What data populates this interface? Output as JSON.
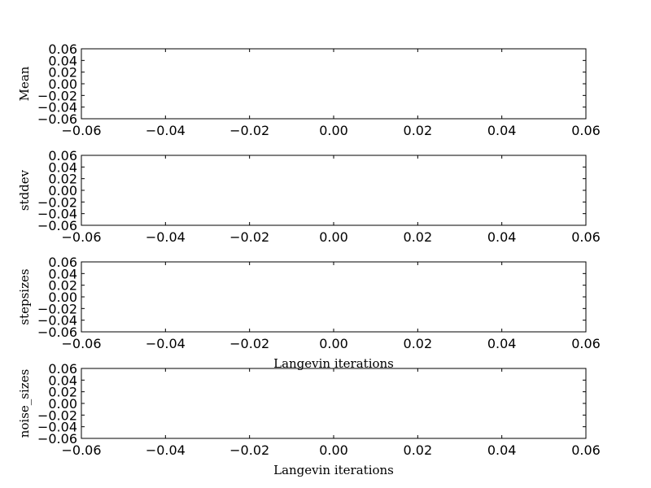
{
  "chart_data": [
    {
      "type": "line",
      "ylabel": "Mean",
      "xlabel": "",
      "xlim": [
        -0.06,
        0.06
      ],
      "ylim": [
        -0.06,
        0.06
      ],
      "xticks": [
        "−0.06",
        "−0.04",
        "−0.02",
        "0.00",
        "0.02",
        "0.04",
        "0.06"
      ],
      "yticks": [
        "0.06",
        "0.04",
        "0.02",
        "0.00",
        "−0.02",
        "−0.04",
        "−0.06"
      ],
      "series": [],
      "grid": false
    },
    {
      "type": "line",
      "ylabel": "stddev",
      "xlabel": "",
      "xlim": [
        -0.06,
        0.06
      ],
      "ylim": [
        -0.06,
        0.06
      ],
      "xticks": [
        "−0.06",
        "−0.04",
        "−0.02",
        "0.00",
        "0.02",
        "0.04",
        "0.06"
      ],
      "yticks": [
        "0.06",
        "0.04",
        "0.02",
        "0.00",
        "−0.02",
        "−0.04",
        "−0.06"
      ],
      "series": [],
      "grid": false
    },
    {
      "type": "line",
      "ylabel": "stepsizes",
      "xlabel": "Langevin iterations",
      "xlim": [
        -0.06,
        0.06
      ],
      "ylim": [
        -0.06,
        0.06
      ],
      "xticks": [
        "−0.06",
        "−0.04",
        "−0.02",
        "0.00",
        "0.02",
        "0.04",
        "0.06"
      ],
      "yticks": [
        "0.06",
        "0.04",
        "0.02",
        "0.00",
        "−0.02",
        "−0.04",
        "−0.06"
      ],
      "series": [],
      "grid": false
    },
    {
      "type": "line",
      "ylabel": "noise_sizes",
      "xlabel": "Langevin iterations",
      "xlim": [
        -0.06,
        0.06
      ],
      "ylim": [
        -0.06,
        0.06
      ],
      "xticks": [
        "−0.06",
        "−0.04",
        "−0.02",
        "0.00",
        "0.02",
        "0.04",
        "0.06"
      ],
      "yticks": [
        "0.06",
        "0.04",
        "0.02",
        "0.00",
        "−0.02",
        "−0.04",
        "−0.06"
      ],
      "series": [],
      "grid": false
    }
  ]
}
